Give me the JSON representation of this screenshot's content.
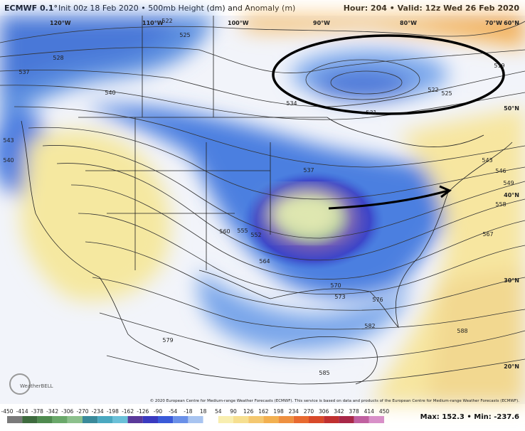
{
  "header": {
    "model": "ECMWF 0.1°",
    "run": "Init 00z 18 Feb 2020 • 500mb Height (dm) and Anomaly (m)",
    "forecast": "Hour: 204 • Valid: 12z Wed 26 Feb 2020"
  },
  "map": {
    "longitude_labels": [
      "120°W",
      "110°W",
      "100°W",
      "90°W",
      "80°W",
      "70°W"
    ],
    "latitude_labels": [
      "60°N",
      "50°N",
      "40°N",
      "30°N",
      "20°N"
    ],
    "contour_labels": [
      "522",
      "525",
      "528",
      "537",
      "540",
      "534",
      "531",
      "519",
      "522",
      "525",
      "543",
      "540",
      "537",
      "543",
      "546",
      "549",
      "558",
      "567",
      "560",
      "555",
      "552",
      "564",
      "570",
      "573",
      "576",
      "582",
      "579",
      "585",
      "588"
    ]
  },
  "logo": "WeatherBELL",
  "copyright": "© 2020 European Centre for Medium-range Weather Forecasts (ECMWF). This service is based on data and products of the European Centre for Medium-range Weather Forecasts (ECMWF).",
  "colorbar": {
    "ticks": [
      -450,
      -414,
      -378,
      -342,
      -306,
      -270,
      -234,
      -198,
      -162,
      -126,
      -90,
      -54,
      -18,
      18,
      54,
      90,
      126,
      162,
      198,
      234,
      270,
      306,
      342,
      378,
      414,
      450
    ]
  },
  "stats": "Max: 152.3 • Min: -237.6"
}
